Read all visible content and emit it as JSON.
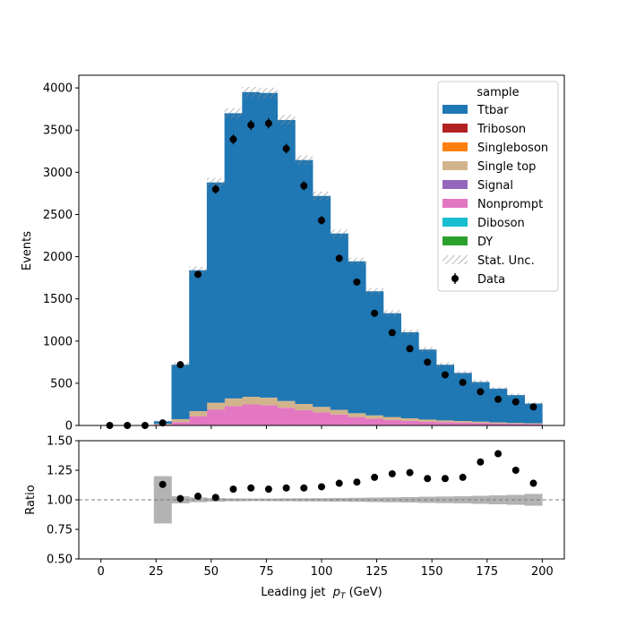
{
  "chart_data": [
    {
      "type": "bar",
      "panel": "main",
      "stacked": true,
      "xlabel": "",
      "ylabel": "Events",
      "xlim": [
        -10,
        210
      ],
      "ylim": [
        0,
        4150
      ],
      "yticks": [
        0,
        500,
        1000,
        1500,
        2000,
        2500,
        3000,
        3500,
        4000
      ],
      "bin_edges": [
        0,
        8,
        16,
        24,
        32,
        40,
        48,
        56,
        64,
        72,
        80,
        88,
        96,
        104,
        112,
        120,
        128,
        136,
        144,
        152,
        160,
        168,
        176,
        184,
        192,
        200
      ],
      "legend": {
        "title": "sample",
        "placement": "top-right",
        "entries": [
          "Ttbar",
          "Triboson",
          "Singleboson",
          "Single top",
          "Signal",
          "Nonprompt",
          "Diboson",
          "DY",
          "Stat. Unc.",
          "Data"
        ]
      },
      "series": [
        {
          "name": "Nonprompt",
          "color": "#e377c2",
          "values": [
            0,
            0,
            0,
            10,
            40,
            110,
            190,
            230,
            250,
            240,
            210,
            180,
            155,
            130,
            100,
            80,
            65,
            55,
            45,
            40,
            35,
            30,
            25,
            20,
            18
          ]
        },
        {
          "name": "Single top",
          "color": "#d2b48c",
          "values": [
            0,
            0,
            0,
            10,
            35,
            60,
            80,
            90,
            90,
            90,
            80,
            75,
            65,
            55,
            45,
            40,
            35,
            30,
            25,
            20,
            18,
            15,
            12,
            10,
            8
          ]
        },
        {
          "name": "Ttbar",
          "color": "#1f77b4",
          "values": [
            0,
            0,
            0,
            30,
            645,
            1670,
            2610,
            3380,
            3610,
            3610,
            3330,
            2890,
            2500,
            2090,
            1800,
            1470,
            1230,
            1020,
            830,
            660,
            570,
            470,
            400,
            330,
            234
          ]
        }
      ],
      "data": {
        "name": "Data",
        "values": [
          0,
          0,
          0,
          30,
          720,
          1790,
          2800,
          3390,
          3560,
          3580,
          3280,
          2840,
          2430,
          1980,
          1700,
          1330,
          1100,
          910,
          750,
          600,
          510,
          400,
          310,
          280,
          220
        ]
      },
      "stat_unc_label": "Stat. Unc.",
      "colors": {
        "ttbar": "#1f77b4",
        "triboson": "#b22222",
        "singleboson": "#ff7f0e",
        "single_top": "#d2b48c",
        "signal": "#9467bd",
        "nonprompt": "#e377c2",
        "diboson": "#17becf",
        "dy": "#2ca02c",
        "unc": "#999999"
      }
    },
    {
      "type": "scatter",
      "panel": "ratio",
      "xlabel": "Leading jet  $p_T$ (GeV)",
      "ylabel": "Ratio",
      "xlim": [
        -10,
        210
      ],
      "ylim": [
        0.5,
        1.5
      ],
      "xticks": [
        0,
        25,
        50,
        75,
        100,
        125,
        150,
        175,
        200
      ],
      "yticks": [
        0.5,
        0.75,
        1.0,
        1.25,
        1.5
      ],
      "ytick_labels": [
        "0.50",
        "0.75",
        "1.00",
        "1.25",
        "1.50"
      ],
      "reference_line": 1.0,
      "x": [
        28,
        36,
        44,
        52,
        60,
        68,
        76,
        84,
        92,
        100,
        108,
        116,
        124,
        132,
        140,
        148,
        156,
        164,
        172,
        180,
        188,
        196
      ],
      "values": [
        1.13,
        1.01,
        1.03,
        1.02,
        1.09,
        1.1,
        1.09,
        1.1,
        1.1,
        1.11,
        1.14,
        1.15,
        1.19,
        1.22,
        1.23,
        1.18,
        1.18,
        1.19,
        1.32,
        1.39,
        1.25,
        1.14
      ],
      "unc_band": {
        "bin_edges": [
          24,
          32,
          40,
          48,
          56,
          64,
          72,
          80,
          88,
          96,
          104,
          112,
          120,
          128,
          136,
          144,
          152,
          160,
          168,
          176,
          184,
          192,
          200
        ],
        "half_width": [
          0.2,
          0.03,
          0.02,
          0.015,
          0.012,
          0.011,
          0.011,
          0.012,
          0.013,
          0.014,
          0.015,
          0.017,
          0.019,
          0.021,
          0.023,
          0.026,
          0.028,
          0.03,
          0.034,
          0.038,
          0.042,
          0.05
        ]
      }
    }
  ],
  "ui": {
    "main_ytick_labels": [
      "0",
      "500",
      "1000",
      "1500",
      "2000",
      "2500",
      "3000",
      "3500",
      "4000"
    ],
    "ratio_xtick_labels": [
      "0",
      "25",
      "50",
      "75",
      "100",
      "125",
      "150",
      "175",
      "200"
    ]
  }
}
